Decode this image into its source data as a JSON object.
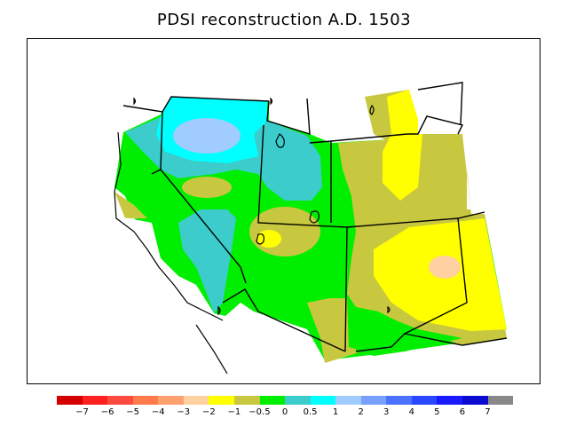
{
  "title": "PDSI reconstruction A.D. 1503",
  "colorbar": {
    "colors": [
      "#d40000",
      "#ff2020",
      "#ff4a40",
      "#ff7a4a",
      "#ffa070",
      "#ffd0a0",
      "#ffff00",
      "#c8c840",
      "#00ef00",
      "#3ccccc",
      "#00ffff",
      "#a0ccff",
      "#78a0ff",
      "#4a72ff",
      "#2a48ff",
      "#1a1aff",
      "#0a0ad0",
      "#888888"
    ],
    "labels": [
      "−7",
      "−6",
      "−5",
      "−4",
      "−3",
      "−2",
      "−1",
      "−0.5",
      "0",
      "0.5",
      "1",
      "2",
      "3",
      "4",
      "5",
      "6",
      "7"
    ]
  },
  "palette": {
    "light_blue": "#a0ccff",
    "cyan": "#00ffff",
    "teal": "#3ccccc",
    "green": "#00ef00",
    "olive": "#c8c840",
    "yellow": "#ffff00",
    "peach": "#ffd0a0"
  },
  "map": {
    "region": "western United States",
    "field": "PDSI",
    "year": "A.D. 1503"
  }
}
